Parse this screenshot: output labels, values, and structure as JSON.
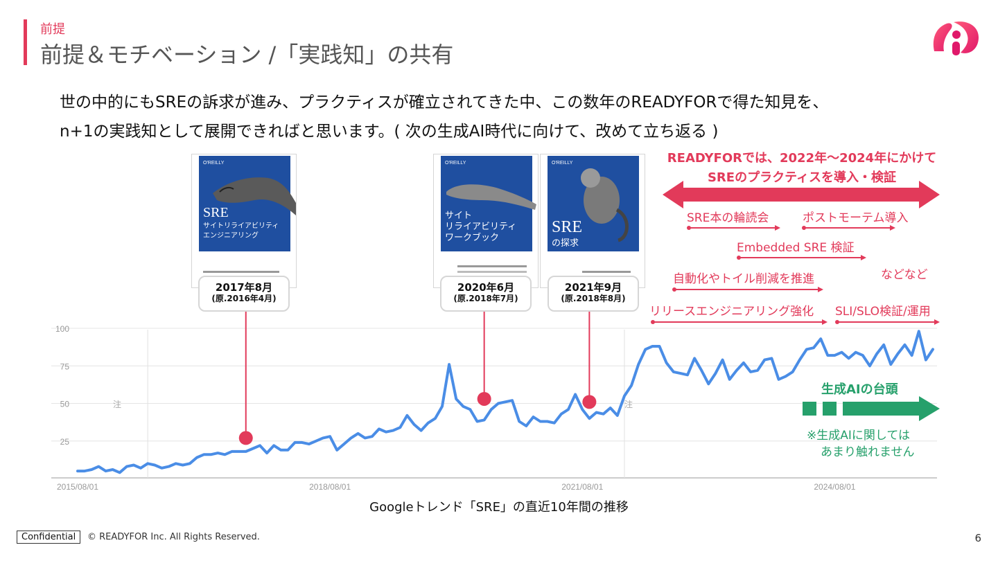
{
  "header": {
    "section_label": "前提",
    "title": "前提＆モチベーション /「実践知」の共有"
  },
  "intro": {
    "line1": "世の中的にもSREの訴求が進み、プラクティスが確立されてきた中、この数年のREADYFORで得た知見を、",
    "line2": "n+1の実践知として展開できればと思います。( 次の生成AI時代に向けて、改めて立ち返る )"
  },
  "books": [
    {
      "publisher": "O'REILLY",
      "title_line1": "SRE",
      "title_line2": "サイトリライアビリティ",
      "title_line3": "エンジニアリング",
      "date": "2017年8月",
      "original": "(原.2016年4月)"
    },
    {
      "publisher": "O'REILLY",
      "title_line1": "サイト",
      "title_line2": "リライアビリティ",
      "title_line3": "ワークブック",
      "date": "2020年6月",
      "original": "(原.2018年7月)"
    },
    {
      "publisher": "O'REILLY",
      "title_line1": "SRE",
      "title_line2": "の探求",
      "title_line3": "",
      "date": "2021年9月",
      "original": "(原.2018年8月)"
    }
  ],
  "annotations": {
    "headline_line1": "READYFORでは、2022年〜2024年にかけて",
    "headline_line2": "SREのプラクティスを導入・検証",
    "items": [
      "SRE本の輪読会",
      "ポストモーテム導入",
      "Embedded SRE 検証",
      "などなど",
      "自動化やトイル削減を推進",
      "リリースエンジニアリング強化",
      "SLI/SLO検証/運用"
    ],
    "genai_title": "生成AIの台頭",
    "genai_note_line1": "※生成AIに関しては",
    "genai_note_line2": "あまり触れません",
    "note_marker": "注"
  },
  "colors": {
    "accent": "#e23a5a",
    "line": "#4a8de6",
    "green": "#26a06b",
    "book_blue": "#1f4fa0"
  },
  "chart_data": {
    "type": "line",
    "title": "",
    "xlabel": "",
    "ylabel": "",
    "x_start": "2015/08",
    "x_interval": "month",
    "x_tick_labels": [
      "2015/08/01",
      "2018/08/01",
      "2021/08/01",
      "2024/08/01"
    ],
    "y_ticks": [
      25,
      50,
      75,
      100
    ],
    "ylim": [
      0,
      100
    ],
    "grid": true,
    "series": [
      {
        "values": [
          5,
          5,
          6,
          8,
          5,
          6,
          4,
          8,
          9,
          7,
          10,
          9,
          7,
          8,
          10,
          9,
          10,
          14,
          16,
          16,
          17,
          16,
          18,
          18,
          18,
          20,
          22,
          17,
          22,
          19,
          19,
          24,
          24,
          23,
          25,
          27,
          28,
          19,
          23,
          27,
          30,
          27,
          28,
          33,
          31,
          32,
          34,
          42,
          36,
          32,
          37,
          40,
          48,
          76,
          53,
          48,
          46,
          38,
          39,
          46,
          50,
          51,
          52,
          38,
          35,
          41,
          38,
          38,
          37,
          43,
          46,
          56,
          46,
          40,
          44,
          43,
          47,
          42,
          55,
          62,
          76,
          86,
          88,
          88,
          77,
          71,
          70,
          69,
          80,
          72,
          63,
          70,
          79,
          66,
          72,
          77,
          71,
          72,
          79,
          80,
          66,
          68,
          71,
          79,
          86,
          87,
          93,
          82,
          82,
          84,
          80,
          84,
          82,
          75,
          83,
          89,
          76,
          83,
          89,
          82,
          98,
          79,
          86
        ]
      }
    ],
    "markers": [
      {
        "label": "2017年8月",
        "x": "2017/08",
        "y": 27
      },
      {
        "label": "2020年6月",
        "x": "2020/06",
        "y": 53
      },
      {
        "label": "2021年9月",
        "x": "2021/09",
        "y": 51
      }
    ]
  },
  "caption": "Googleトレンド「SRE」の直近10年間の推移",
  "footer": {
    "confidential": "Confidential",
    "copyright": "© READYFOR Inc. All Rights Reserved.",
    "page_number": "6"
  }
}
